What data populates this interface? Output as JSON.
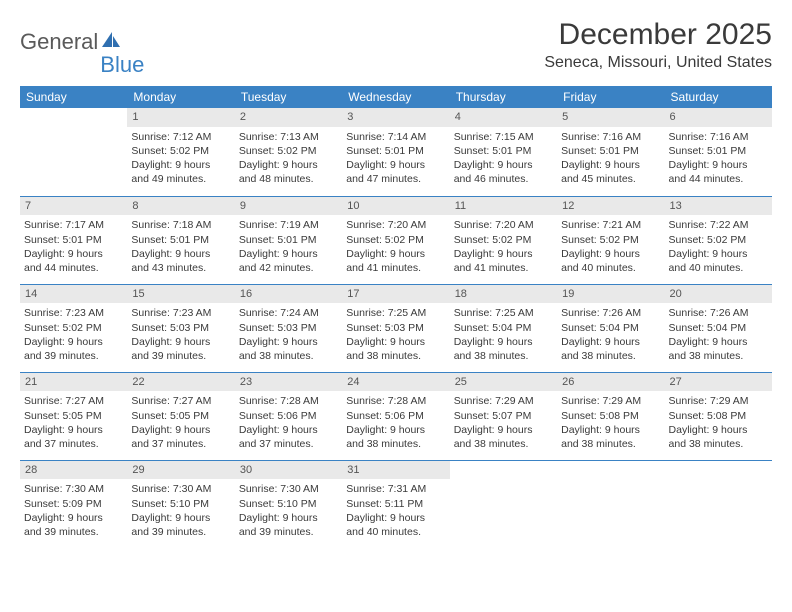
{
  "brand": {
    "word1": "General",
    "word2": "Blue",
    "accent_color": "#3a82c4",
    "text_color": "#5a5a5a"
  },
  "title": "December 2025",
  "location": "Seneca, Missouri, United States",
  "colors": {
    "header_bg": "#3a82c4",
    "header_text": "#ffffff",
    "row_border": "#3a82c4",
    "daynum_bg": "#e9e9e9",
    "body_text": "#3a3a3a"
  },
  "day_headers": [
    "Sunday",
    "Monday",
    "Tuesday",
    "Wednesday",
    "Thursday",
    "Friday",
    "Saturday"
  ],
  "weeks": [
    [
      null,
      {
        "n": "1",
        "sr": "Sunrise: 7:12 AM",
        "ss": "Sunset: 5:02 PM",
        "d1": "Daylight: 9 hours",
        "d2": "and 49 minutes."
      },
      {
        "n": "2",
        "sr": "Sunrise: 7:13 AM",
        "ss": "Sunset: 5:02 PM",
        "d1": "Daylight: 9 hours",
        "d2": "and 48 minutes."
      },
      {
        "n": "3",
        "sr": "Sunrise: 7:14 AM",
        "ss": "Sunset: 5:01 PM",
        "d1": "Daylight: 9 hours",
        "d2": "and 47 minutes."
      },
      {
        "n": "4",
        "sr": "Sunrise: 7:15 AM",
        "ss": "Sunset: 5:01 PM",
        "d1": "Daylight: 9 hours",
        "d2": "and 46 minutes."
      },
      {
        "n": "5",
        "sr": "Sunrise: 7:16 AM",
        "ss": "Sunset: 5:01 PM",
        "d1": "Daylight: 9 hours",
        "d2": "and 45 minutes."
      },
      {
        "n": "6",
        "sr": "Sunrise: 7:16 AM",
        "ss": "Sunset: 5:01 PM",
        "d1": "Daylight: 9 hours",
        "d2": "and 44 minutes."
      }
    ],
    [
      {
        "n": "7",
        "sr": "Sunrise: 7:17 AM",
        "ss": "Sunset: 5:01 PM",
        "d1": "Daylight: 9 hours",
        "d2": "and 44 minutes."
      },
      {
        "n": "8",
        "sr": "Sunrise: 7:18 AM",
        "ss": "Sunset: 5:01 PM",
        "d1": "Daylight: 9 hours",
        "d2": "and 43 minutes."
      },
      {
        "n": "9",
        "sr": "Sunrise: 7:19 AM",
        "ss": "Sunset: 5:01 PM",
        "d1": "Daylight: 9 hours",
        "d2": "and 42 minutes."
      },
      {
        "n": "10",
        "sr": "Sunrise: 7:20 AM",
        "ss": "Sunset: 5:02 PM",
        "d1": "Daylight: 9 hours",
        "d2": "and 41 minutes."
      },
      {
        "n": "11",
        "sr": "Sunrise: 7:20 AM",
        "ss": "Sunset: 5:02 PM",
        "d1": "Daylight: 9 hours",
        "d2": "and 41 minutes."
      },
      {
        "n": "12",
        "sr": "Sunrise: 7:21 AM",
        "ss": "Sunset: 5:02 PM",
        "d1": "Daylight: 9 hours",
        "d2": "and 40 minutes."
      },
      {
        "n": "13",
        "sr": "Sunrise: 7:22 AM",
        "ss": "Sunset: 5:02 PM",
        "d1": "Daylight: 9 hours",
        "d2": "and 40 minutes."
      }
    ],
    [
      {
        "n": "14",
        "sr": "Sunrise: 7:23 AM",
        "ss": "Sunset: 5:02 PM",
        "d1": "Daylight: 9 hours",
        "d2": "and 39 minutes."
      },
      {
        "n": "15",
        "sr": "Sunrise: 7:23 AM",
        "ss": "Sunset: 5:03 PM",
        "d1": "Daylight: 9 hours",
        "d2": "and 39 minutes."
      },
      {
        "n": "16",
        "sr": "Sunrise: 7:24 AM",
        "ss": "Sunset: 5:03 PM",
        "d1": "Daylight: 9 hours",
        "d2": "and 38 minutes."
      },
      {
        "n": "17",
        "sr": "Sunrise: 7:25 AM",
        "ss": "Sunset: 5:03 PM",
        "d1": "Daylight: 9 hours",
        "d2": "and 38 minutes."
      },
      {
        "n": "18",
        "sr": "Sunrise: 7:25 AM",
        "ss": "Sunset: 5:04 PM",
        "d1": "Daylight: 9 hours",
        "d2": "and 38 minutes."
      },
      {
        "n": "19",
        "sr": "Sunrise: 7:26 AM",
        "ss": "Sunset: 5:04 PM",
        "d1": "Daylight: 9 hours",
        "d2": "and 38 minutes."
      },
      {
        "n": "20",
        "sr": "Sunrise: 7:26 AM",
        "ss": "Sunset: 5:04 PM",
        "d1": "Daylight: 9 hours",
        "d2": "and 38 minutes."
      }
    ],
    [
      {
        "n": "21",
        "sr": "Sunrise: 7:27 AM",
        "ss": "Sunset: 5:05 PM",
        "d1": "Daylight: 9 hours",
        "d2": "and 37 minutes."
      },
      {
        "n": "22",
        "sr": "Sunrise: 7:27 AM",
        "ss": "Sunset: 5:05 PM",
        "d1": "Daylight: 9 hours",
        "d2": "and 37 minutes."
      },
      {
        "n": "23",
        "sr": "Sunrise: 7:28 AM",
        "ss": "Sunset: 5:06 PM",
        "d1": "Daylight: 9 hours",
        "d2": "and 37 minutes."
      },
      {
        "n": "24",
        "sr": "Sunrise: 7:28 AM",
        "ss": "Sunset: 5:06 PM",
        "d1": "Daylight: 9 hours",
        "d2": "and 38 minutes."
      },
      {
        "n": "25",
        "sr": "Sunrise: 7:29 AM",
        "ss": "Sunset: 5:07 PM",
        "d1": "Daylight: 9 hours",
        "d2": "and 38 minutes."
      },
      {
        "n": "26",
        "sr": "Sunrise: 7:29 AM",
        "ss": "Sunset: 5:08 PM",
        "d1": "Daylight: 9 hours",
        "d2": "and 38 minutes."
      },
      {
        "n": "27",
        "sr": "Sunrise: 7:29 AM",
        "ss": "Sunset: 5:08 PM",
        "d1": "Daylight: 9 hours",
        "d2": "and 38 minutes."
      }
    ],
    [
      {
        "n": "28",
        "sr": "Sunrise: 7:30 AM",
        "ss": "Sunset: 5:09 PM",
        "d1": "Daylight: 9 hours",
        "d2": "and 39 minutes."
      },
      {
        "n": "29",
        "sr": "Sunrise: 7:30 AM",
        "ss": "Sunset: 5:10 PM",
        "d1": "Daylight: 9 hours",
        "d2": "and 39 minutes."
      },
      {
        "n": "30",
        "sr": "Sunrise: 7:30 AM",
        "ss": "Sunset: 5:10 PM",
        "d1": "Daylight: 9 hours",
        "d2": "and 39 minutes."
      },
      {
        "n": "31",
        "sr": "Sunrise: 7:31 AM",
        "ss": "Sunset: 5:11 PM",
        "d1": "Daylight: 9 hours",
        "d2": "and 40 minutes."
      },
      null,
      null,
      null
    ]
  ]
}
